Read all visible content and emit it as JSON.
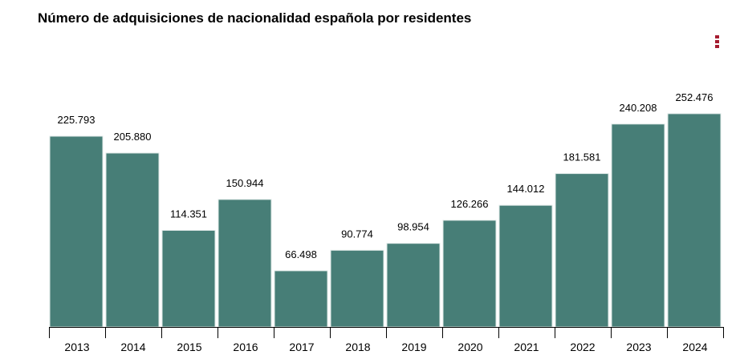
{
  "chart_data": {
    "type": "bar",
    "title": "Número de adquisiciones de nacionalidad española por residentes",
    "categories": [
      "2013",
      "2014",
      "2015",
      "2016",
      "2017",
      "2018",
      "2019",
      "2020",
      "2021",
      "2022",
      "2023",
      "2024"
    ],
    "values": [
      225793,
      205880,
      114351,
      150944,
      66498,
      90774,
      98954,
      126266,
      144012,
      181581,
      240208,
      252476
    ],
    "value_labels": [
      "225.793",
      "205.880",
      "114.351",
      "150.944",
      "66.498",
      "90.774",
      "98.954",
      "126.266",
      "144.012",
      "181.581",
      "240.208",
      "252.476"
    ],
    "xlabel": "",
    "ylabel": "",
    "ylim": [
      0,
      284600
    ],
    "grid": false,
    "bar_color": "#477e77",
    "menu_icon": "vertical-dots-icon",
    "menu_color": "#a51c30"
  }
}
